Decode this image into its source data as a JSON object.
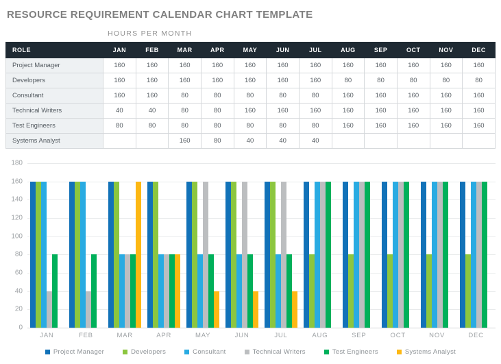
{
  "title": "RESOURCE REQUIREMENT CALENDAR CHART TEMPLATE",
  "table": {
    "subtitle": "HOURS PER MONTH",
    "columns": [
      "ROLE",
      "JAN",
      "FEB",
      "MAR",
      "APR",
      "MAY",
      "JUN",
      "JUL",
      "AUG",
      "SEP",
      "OCT",
      "NOV",
      "DEC"
    ],
    "rows": [
      {
        "role": "Project Manager",
        "values": [
          "160",
          "160",
          "160",
          "160",
          "160",
          "160",
          "160",
          "160",
          "160",
          "160",
          "160",
          "160"
        ]
      },
      {
        "role": "Developers",
        "values": [
          "160",
          "160",
          "160",
          "160",
          "160",
          "160",
          "160",
          "80",
          "80",
          "80",
          "80",
          "80"
        ]
      },
      {
        "role": "Consultant",
        "values": [
          "160",
          "160",
          "80",
          "80",
          "80",
          "80",
          "80",
          "160",
          "160",
          "160",
          "160",
          "160"
        ]
      },
      {
        "role": "Technical Writers",
        "values": [
          "40",
          "40",
          "80",
          "80",
          "160",
          "160",
          "160",
          "160",
          "160",
          "160",
          "160",
          "160"
        ]
      },
      {
        "role": "Test Engineers",
        "values": [
          "80",
          "80",
          "80",
          "80",
          "80",
          "80",
          "80",
          "160",
          "160",
          "160",
          "160",
          "160"
        ]
      },
      {
        "role": "Systems Analyst",
        "values": [
          "",
          "",
          "160",
          "80",
          "40",
          "40",
          "40",
          "",
          "",
          "",
          "",
          ""
        ]
      }
    ]
  },
  "chart_data": {
    "type": "bar",
    "title": "",
    "xlabel": "",
    "ylabel": "",
    "ylim": [
      0,
      180
    ],
    "ytick_step": 20,
    "grid": true,
    "legend_position": "bottom",
    "categories": [
      "JAN",
      "FEB",
      "MAR",
      "APR",
      "MAY",
      "JUN",
      "JUL",
      "AUG",
      "SEP",
      "OCT",
      "NOV",
      "DEC"
    ],
    "series": [
      {
        "name": "Project Manager",
        "color": "#1272B8",
        "values": [
          160,
          160,
          160,
          160,
          160,
          160,
          160,
          160,
          160,
          160,
          160,
          160
        ]
      },
      {
        "name": "Developers",
        "color": "#8CC63F",
        "values": [
          160,
          160,
          160,
          160,
          160,
          160,
          160,
          80,
          80,
          80,
          80,
          80
        ]
      },
      {
        "name": "Consultant",
        "color": "#29ABE2",
        "values": [
          160,
          160,
          80,
          80,
          80,
          80,
          80,
          160,
          160,
          160,
          160,
          160
        ]
      },
      {
        "name": "Technical Writers",
        "color": "#BCBEC0",
        "values": [
          40,
          40,
          80,
          80,
          160,
          160,
          160,
          160,
          160,
          160,
          160,
          160
        ]
      },
      {
        "name": "Test Engineers",
        "color": "#00B05A",
        "values": [
          80,
          80,
          80,
          80,
          80,
          80,
          80,
          160,
          160,
          160,
          160,
          160
        ]
      },
      {
        "name": "Systems Analyst",
        "color": "#FDB813",
        "values": [
          null,
          null,
          160,
          80,
          40,
          40,
          40,
          null,
          null,
          null,
          null,
          null
        ]
      }
    ]
  }
}
